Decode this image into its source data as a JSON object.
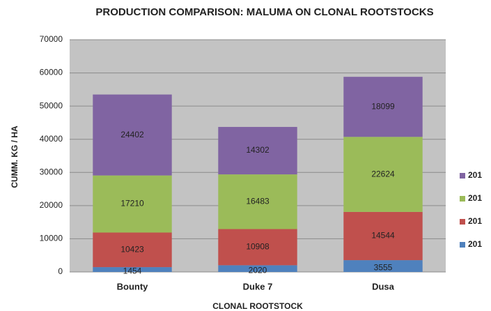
{
  "chart_data": {
    "type": "bar",
    "stacked": true,
    "title": "PRODUCTION COMPARISON: MALUMA ON CLONAL ROOTSTOCKS",
    "x_label": "CLONAL ROOTSTOCK",
    "y_label": "CUMM. KG / HA",
    "categories": [
      "Bounty",
      "Duke 7",
      "Dusa"
    ],
    "series": [
      {
        "name": "201",
        "color": "#4f81bd",
        "values": [
          1454,
          2020,
          3555
        ]
      },
      {
        "name": "201",
        "color": "#c0504d",
        "values": [
          10423,
          10908,
          14544
        ]
      },
      {
        "name": "201",
        "color": "#9bbb59",
        "values": [
          17210,
          16483,
          22624
        ]
      },
      {
        "name": "201",
        "color": "#8064a2",
        "values": [
          24402,
          14302,
          18099
        ]
      }
    ],
    "ylim": [
      0,
      70000
    ],
    "yticks": [
      0,
      10000,
      20000,
      30000,
      40000,
      50000,
      60000,
      70000
    ],
    "grid": true,
    "legend": "right"
  }
}
